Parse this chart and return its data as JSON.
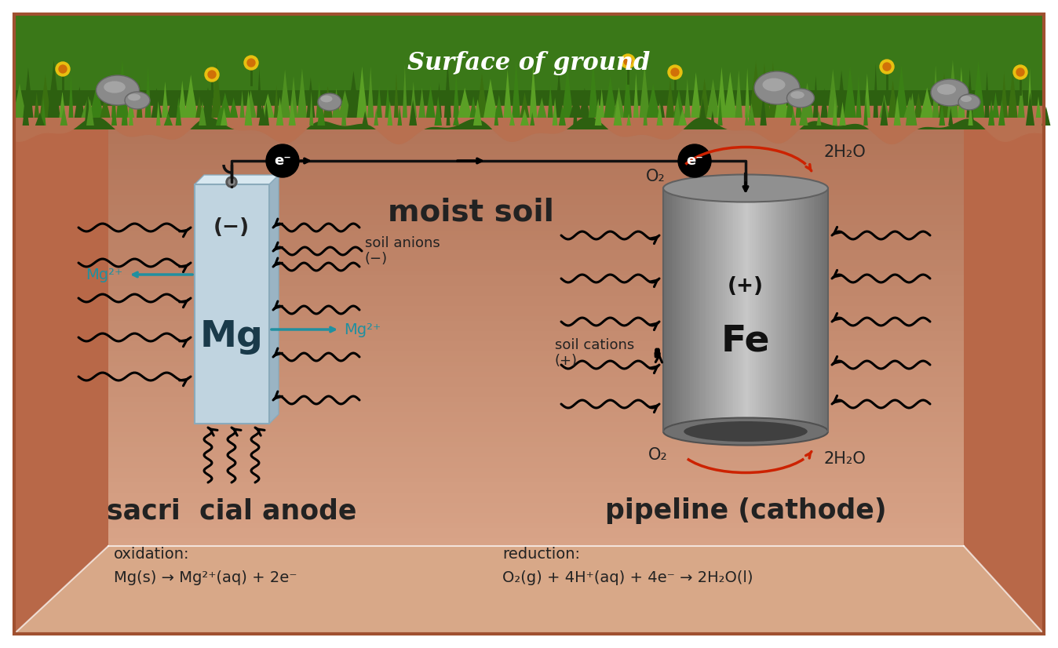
{
  "ground_surface_text": "Surface of ground",
  "moist_soil_text": "moist soil",
  "anode_label": "sacri  cial anode",
  "cathode_label": "pipeline (cathode)",
  "oxidation_label": "oxidation:",
  "oxidation_eq": "Mg(s) → Mg²⁺(aq) + 2e⁻",
  "reduction_label": "reduction:",
  "reduction_eq": "O₂(g) + 4H⁺(aq) + 4e⁻ → 2H₂O(l)",
  "soil_anions_text": "soil anions\n(−)",
  "soil_cations_text": "soil cations\n(+)",
  "o2_text": "O₂",
  "h2o_top_text": "2H₂O",
  "h2o_bot_text": "2H₂O",
  "mg2plus_text": "Mg²⁺",
  "eminus_text": "e⁻",
  "mg_label": "Mg",
  "fe_label": "Fe",
  "minus_label": "(−)",
  "plus_label": "(+)",
  "soil_color_top": "#b87050",
  "soil_color_mid": "#c8805e",
  "soil_color_bot": "#e0b090",
  "grass_green": "#3a7818",
  "grass_light": "#4e9020",
  "grass_yellow": "#d4b020",
  "rock_gray": "#888888",
  "mg_face": "#c0d4e0",
  "mg_top": "#d8e8f0",
  "mg_right": "#9ab4c4",
  "pipe_body": "#a8a8a8",
  "pipe_dark": "#606060",
  "pipe_light": "#d0d0d0",
  "teal": "#2090a0",
  "wire_color": "#111111",
  "arrow_color": "#111111",
  "red_arrow": "#cc2200",
  "border_color": "#a05030"
}
